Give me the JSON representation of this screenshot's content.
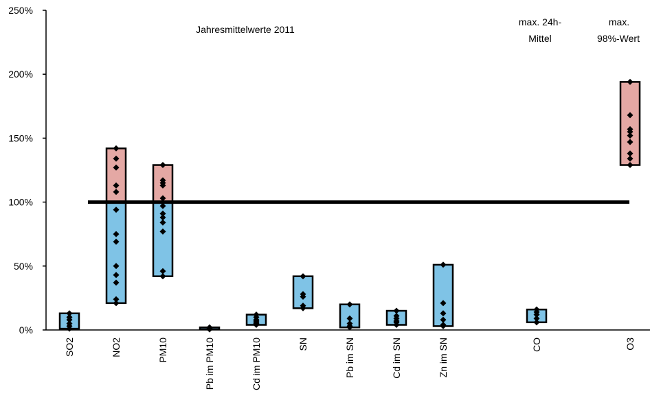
{
  "chart_data": {
    "type": "range-bar",
    "annotations": [
      "Jahresmittelwerte 2011",
      "max. 24h-",
      "Mittel",
      "max.",
      "98%-Wert"
    ],
    "ylim": [
      0,
      250
    ],
    "yticks": [
      0,
      50,
      100,
      150,
      200,
      250
    ],
    "ytick_labels": [
      "0%",
      "50%",
      "100%",
      "150%",
      "200%",
      "250%"
    ],
    "reference_line": 100,
    "colors": {
      "below": "#7fc3e6",
      "above": "#e4a8a4",
      "marker": "#000000",
      "line": "#000000"
    },
    "categories": [
      {
        "label": "SO2",
        "min": 1,
        "max": 13,
        "points": [
          1,
          3,
          5,
          8,
          10,
          13
        ]
      },
      {
        "label": "NO2",
        "min": 21,
        "max": 142,
        "points": [
          21,
          24,
          37,
          43,
          50,
          69,
          75,
          94,
          108,
          113,
          127,
          134,
          142
        ]
      },
      {
        "label": "PM10",
        "min": 42,
        "max": 129,
        "points": [
          42,
          46,
          77,
          84,
          88,
          91,
          97,
          100,
          103,
          113,
          115,
          117,
          129
        ]
      },
      {
        "label": "Pb im PM10",
        "min": 0.5,
        "max": 2,
        "points": [
          0.5,
          1,
          1.5,
          2
        ]
      },
      {
        "label": "Cd im PM10",
        "min": 4,
        "max": 12,
        "points": [
          4,
          5,
          6,
          7,
          8,
          10,
          12
        ]
      },
      {
        "label": "SN",
        "min": 17,
        "max": 42,
        "points": [
          17,
          19,
          26,
          28,
          42
        ]
      },
      {
        "label": "Pb im SN",
        "min": 2,
        "max": 20,
        "points": [
          2,
          3,
          5,
          9,
          20
        ]
      },
      {
        "label": "Cd im SN",
        "min": 4,
        "max": 15,
        "points": [
          4,
          6,
          7,
          9,
          11,
          15
        ]
      },
      {
        "label": "Zn im SN",
        "min": 3,
        "max": 51,
        "points": [
          3,
          4,
          8,
          13,
          21,
          51
        ]
      },
      {
        "label": "CO",
        "min": 6,
        "max": 16,
        "points": [
          6,
          9,
          12,
          14,
          16
        ]
      },
      {
        "label": "O3",
        "min": 129,
        "max": 194,
        "points": [
          129,
          134,
          138,
          147,
          152,
          155,
          157,
          168,
          194
        ]
      }
    ]
  }
}
